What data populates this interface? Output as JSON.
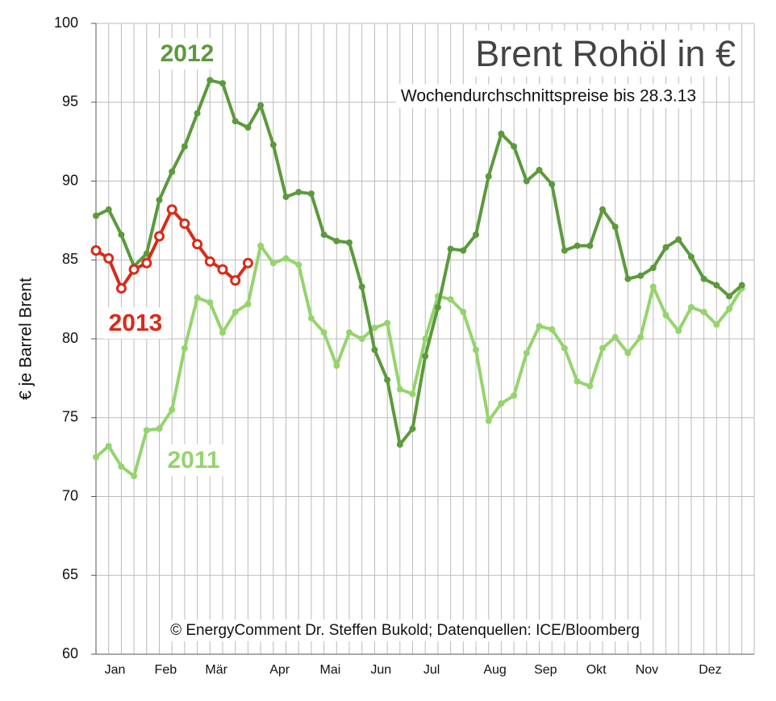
{
  "chart_data": {
    "type": "line",
    "title": "Brent Rohöl in €",
    "subtitle": "Wochendurchschnittspreise bis 28.3.13",
    "source": "© EnergyComment Dr. Steffen Bukold; Datenquellen: ICE/Bloomberg",
    "y_label": "€ je Barrel Brent",
    "categories": [
      null,
      "Jan",
      null,
      null,
      null,
      "Feb",
      null,
      null,
      null,
      "Mär",
      null,
      null,
      null,
      null,
      "Apr",
      null,
      null,
      null,
      "Mai",
      null,
      null,
      null,
      "Jun",
      null,
      null,
      null,
      "Jul",
      null,
      null,
      null,
      null,
      "Aug",
      null,
      null,
      null,
      "Sep",
      null,
      null,
      null,
      "Okt",
      null,
      null,
      null,
      "Nov",
      null,
      null,
      null,
      null,
      "Dez",
      null,
      null,
      null
    ],
    "ylim": [
      60,
      100
    ],
    "yticks": [
      60,
      65,
      70,
      75,
      80,
      85,
      90,
      95,
      100
    ],
    "grid": true,
    "series": [
      {
        "name": "2011",
        "color": "#95d46d",
        "values": [
          72.5,
          73.2,
          71.9,
          71.3,
          74.2,
          74.3,
          75.5,
          79.4,
          82.6,
          82.3,
          80.4,
          81.7,
          82.2,
          85.9,
          84.8,
          85.1,
          84.7,
          81.3,
          80.4,
          78.3,
          80.4,
          80.0,
          80.7,
          81.0,
          76.8,
          76.5,
          80.0,
          82.7,
          82.5,
          81.7,
          79.3,
          74.8,
          75.9,
          76.4,
          79.1,
          80.8,
          80.6,
          79.4,
          77.3,
          77.0,
          79.4,
          80.1,
          79.1,
          80.1,
          83.3,
          81.5,
          80.5,
          82.0,
          81.7,
          80.9,
          81.9,
          83.2
        ]
      },
      {
        "name": "2012",
        "color": "#5b9a3c",
        "values": [
          87.8,
          88.2,
          86.6,
          84.6,
          85.4,
          88.8,
          90.6,
          92.2,
          94.3,
          96.4,
          96.2,
          93.8,
          93.4,
          94.8,
          92.3,
          89.0,
          89.3,
          89.2,
          86.6,
          86.2,
          86.1,
          83.3,
          79.3,
          77.4,
          73.3,
          74.3,
          78.9,
          82.0,
          85.7,
          85.6,
          86.6,
          90.3,
          93.0,
          92.2,
          90.0,
          90.7,
          89.8,
          85.6,
          85.9,
          85.9,
          88.2,
          87.1,
          83.8,
          84.0,
          84.5,
          85.8,
          86.3,
          85.2,
          83.8,
          83.4,
          82.7,
          83.4
        ]
      },
      {
        "name": "2013",
        "color": "#d82b1a",
        "values": [
          85.6,
          85.1,
          83.2,
          84.4,
          84.8,
          86.5,
          88.2,
          87.3,
          86.0,
          84.9,
          84.4,
          83.7,
          84.8,
          null,
          null,
          null,
          null,
          null,
          null,
          null,
          null,
          null,
          null,
          null,
          null,
          null,
          null,
          null,
          null,
          null,
          null,
          null,
          null,
          null,
          null,
          null,
          null,
          null,
          null,
          null,
          null,
          null,
          null,
          null,
          null,
          null,
          null,
          null,
          null,
          null,
          null,
          null
        ]
      }
    ]
  }
}
